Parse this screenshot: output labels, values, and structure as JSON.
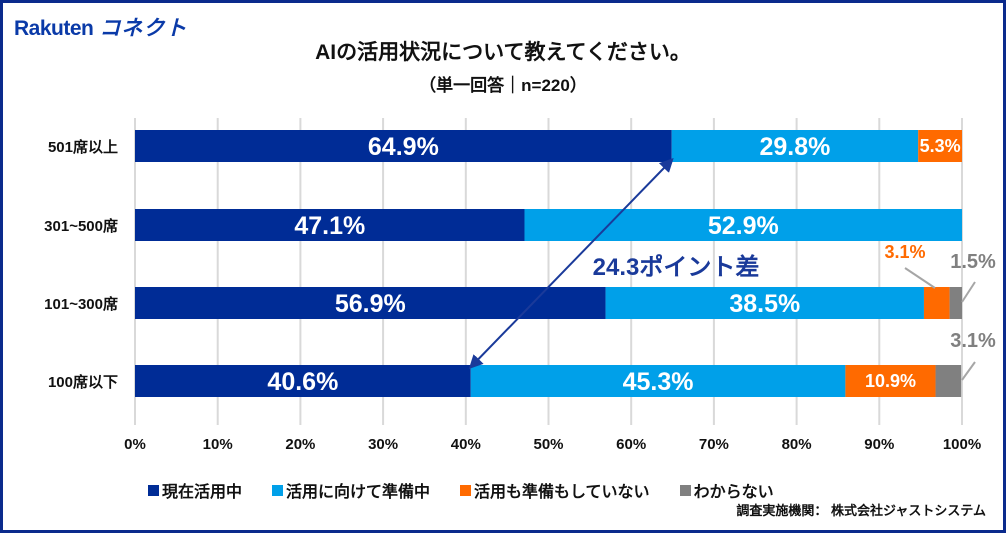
{
  "logo": {
    "brand": "Rakuten",
    "sub": "コネクト"
  },
  "chart_data": {
    "type": "bar",
    "orientation": "horizontal",
    "stacked": true,
    "title": "AIの活用状況について教えてください。",
    "subtitle": "（単一回答｜n=220）",
    "categories": [
      "501席以上",
      "301~500席",
      "101~300席",
      "100席以下"
    ],
    "series": [
      {
        "name": "現在活用中",
        "color": "#002c96",
        "values": [
          64.9,
          47.1,
          56.9,
          40.6
        ],
        "labels": [
          "64.9%",
          "47.1%",
          "56.9%",
          "40.6%"
        ]
      },
      {
        "name": "活用に向けて準備中",
        "color": "#00a0e9",
        "values": [
          29.8,
          52.9,
          38.5,
          45.3
        ],
        "labels": [
          "29.8%",
          "52.9%",
          "38.5%",
          "45.3%"
        ]
      },
      {
        "name": "活用も準備もしていない",
        "color": "#ff6a00",
        "values": [
          5.3,
          0,
          3.1,
          10.9
        ],
        "labels": [
          "5.3%",
          "",
          "3.1%",
          "10.9%"
        ]
      },
      {
        "name": "わからない",
        "color": "#808080",
        "values": [
          0,
          0,
          1.5,
          3.1
        ],
        "labels": [
          "",
          "",
          "1.5%",
          "3.1%"
        ]
      }
    ],
    "xlim": [
      0,
      100
    ],
    "xticks": [
      "0%",
      "10%",
      "20%",
      "30%",
      "40%",
      "50%",
      "60%",
      "70%",
      "80%",
      "90%",
      "100%"
    ],
    "grid": true,
    "legend": "bottom",
    "annotation": {
      "text": "24.3ポイント差",
      "color": "#1a3a9a"
    }
  },
  "source": "調査実施機関： 株式会社ジャストシステム"
}
